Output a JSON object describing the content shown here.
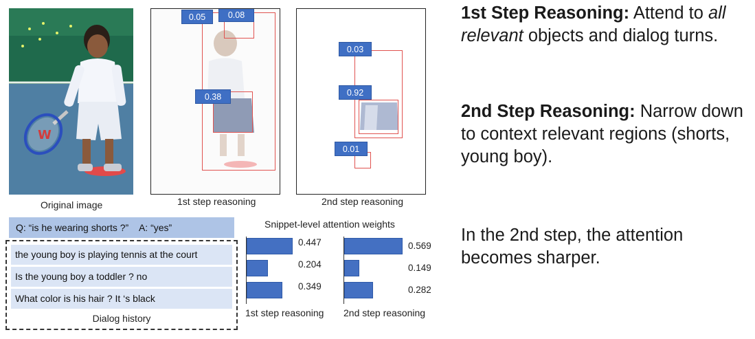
{
  "panels": {
    "original_caption": "Original image",
    "step1_caption": "1st step reasoning",
    "step2_caption": "2nd step reasoning",
    "step1_weights": [
      "0.05",
      "0.08",
      "0.38"
    ],
    "step2_weights": [
      "0.03",
      "0.92",
      "0.01"
    ]
  },
  "question": {
    "q": "Q: “is he wearing shorts ?”",
    "a": "A: “yes”"
  },
  "dialog": {
    "rows": [
      "the young boy is playing tennis at the court",
      "Is the young boy a toddler ? no",
      "What color is his hair ? It ‘s black"
    ],
    "caption": "Dialog history"
  },
  "snippet": {
    "title": "Snippet-level attention weights",
    "step1_label": "1st step reasoning",
    "step2_label": "2nd step reasoning",
    "step1_values": [
      0.447,
      0.204,
      0.349
    ],
    "step2_values": [
      0.569,
      0.149,
      0.282
    ],
    "step1_text": [
      "0.447",
      "0.204",
      "0.349"
    ],
    "step2_text": [
      "0.569",
      "0.149",
      "0.282"
    ]
  },
  "text": {
    "p1_bold": "1st Step Reasoning:",
    "p1_rest1": " Attend to ",
    "p1_italic": "all relevant",
    "p1_rest2": " objects and dialog turns.",
    "p2_bold": "2nd Step Reasoning:",
    "p2_rest": " Narrow down to context relevant regions (shorts, young boy).",
    "p3": "In the 2nd step, the attention becomes sharper."
  },
  "colors": {
    "label_blue": "#3f6fc4",
    "box_red": "#e0524f",
    "bar_blue": "#4470c2"
  }
}
